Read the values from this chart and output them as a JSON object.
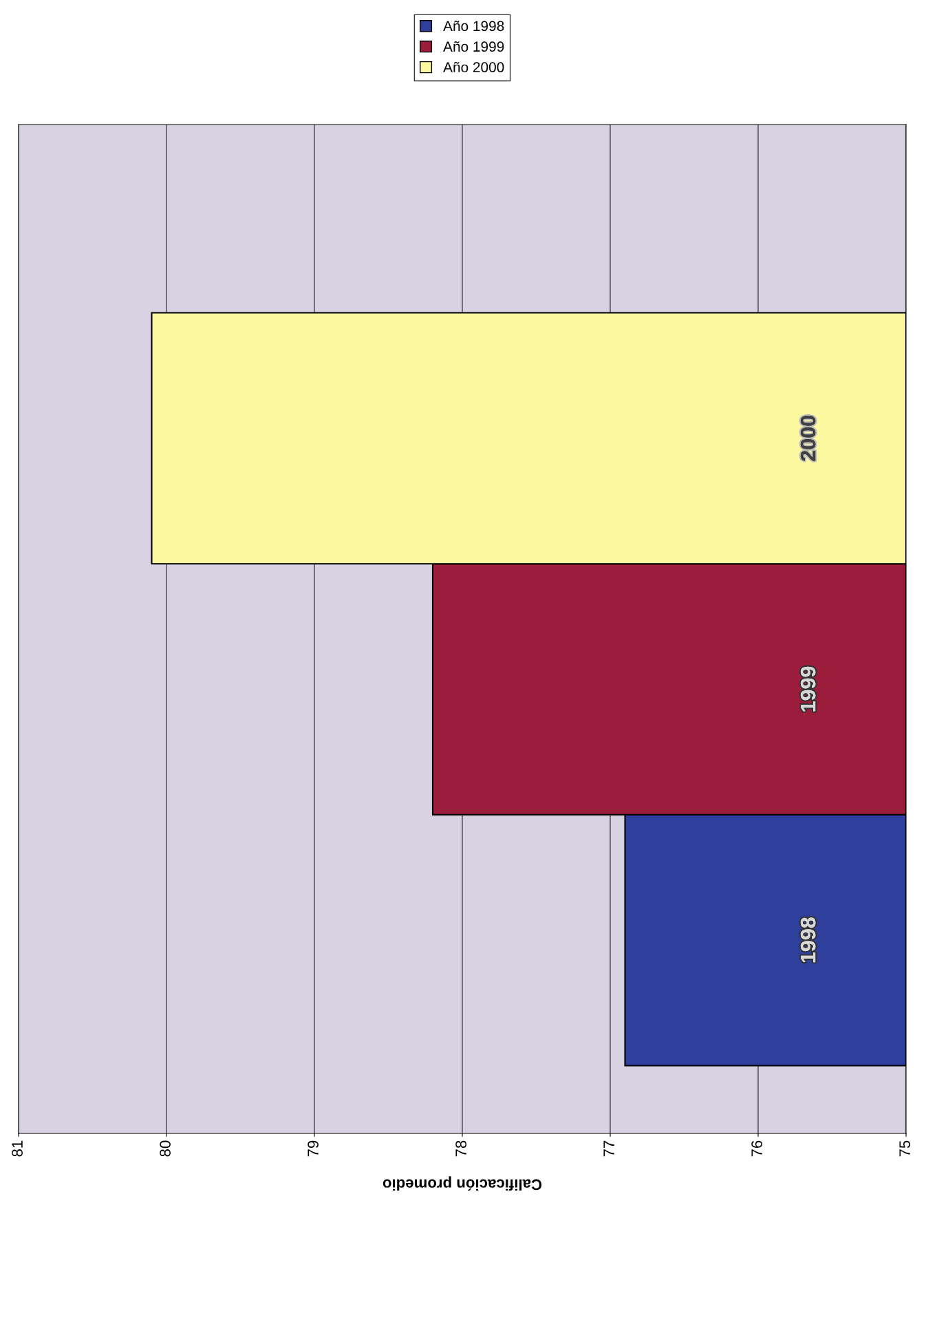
{
  "chart_data": {
    "type": "bar",
    "orientation": "horizontal",
    "xlabel": "Calificación promedio",
    "categories": [
      "2000",
      "1999",
      "1998"
    ],
    "series": [
      {
        "name": "Año 1998",
        "color": "#2f3f9c",
        "values": [
          null,
          null,
          76.9
        ]
      },
      {
        "name": "Año 1999",
        "color": "#9c1c3c",
        "values": [
          null,
          78.2,
          null
        ]
      },
      {
        "name": "Año 2000",
        "color": "#fbf8a0",
        "values": [
          80.1,
          null,
          null
        ]
      }
    ],
    "xlim": [
      81,
      75
    ],
    "xticks": [
      81,
      80,
      79,
      78,
      77,
      76,
      75
    ],
    "grid": "x",
    "legend": "top"
  }
}
